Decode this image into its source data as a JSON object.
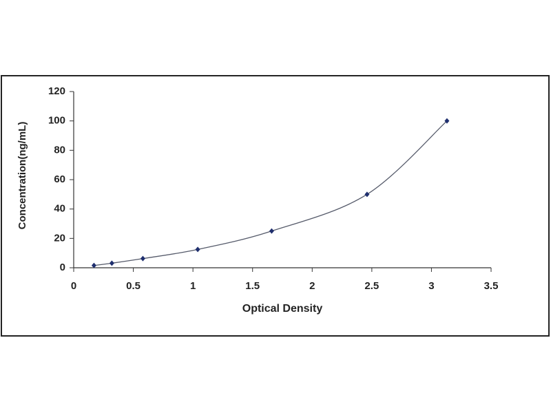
{
  "chart_data": {
    "type": "scatter",
    "x_label": "Optical Density",
    "y_label": "Concentration(ng/mL)",
    "x": [
      0.17,
      0.32,
      0.58,
      1.04,
      1.66,
      2.46,
      3.13
    ],
    "values": [
      1.56,
      3.12,
      6.25,
      12.5,
      25,
      50,
      100
    ],
    "color": "#1f2f6e",
    "line_color": "#555a6a",
    "smooth_line": true,
    "xlim": [
      0,
      3.5
    ],
    "xticks": [
      0,
      0.5,
      1,
      1.5,
      2,
      2.5,
      3,
      3.5
    ],
    "ylim": [
      0,
      120
    ],
    "yticks": [
      0,
      20,
      40,
      60,
      80,
      100,
      120
    ]
  }
}
